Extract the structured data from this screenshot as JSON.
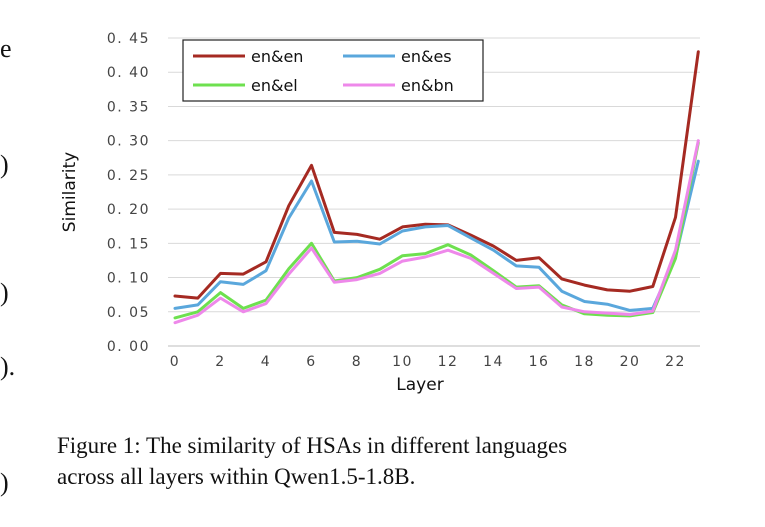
{
  "left_margin_fragments": [
    "e",
    ")",
    ")",
    ").",
    ")"
  ],
  "caption": {
    "line1": "Figure 1: The similarity of HSAs in different languages",
    "line2": "across all layers within Qwen1.5-1.8B."
  },
  "chart_data": {
    "type": "line",
    "xlabel": "Layer",
    "ylabel": "Similarity",
    "x": [
      0,
      1,
      2,
      3,
      4,
      5,
      6,
      7,
      8,
      9,
      10,
      11,
      12,
      13,
      14,
      15,
      16,
      17,
      18,
      19,
      20,
      21,
      22,
      23
    ],
    "xticks": [
      "0",
      "2",
      "4",
      "6",
      "8",
      "10",
      "12",
      "14",
      "16",
      "18",
      "20",
      "22"
    ],
    "yticks": [
      "0. 00",
      "0. 05",
      "0. 10",
      "0. 15",
      "0. 20",
      "0. 25",
      "0. 30",
      "0. 35",
      "0. 40",
      "0. 45"
    ],
    "ylim": [
      0,
      0.45
    ],
    "grid": "horizontal",
    "legend": "top-left",
    "series": [
      {
        "name": "en&en",
        "color": "#a52a22",
        "values": [
          0.073,
          0.07,
          0.106,
          0.105,
          0.123,
          0.205,
          0.264,
          0.166,
          0.163,
          0.156,
          0.174,
          0.178,
          0.177,
          0.162,
          0.146,
          0.125,
          0.129,
          0.098,
          0.089,
          0.082,
          0.08,
          0.087,
          0.188,
          0.43
        ]
      },
      {
        "name": "en&es",
        "color": "#5aa7dc",
        "values": [
          0.055,
          0.06,
          0.094,
          0.09,
          0.11,
          0.187,
          0.241,
          0.152,
          0.153,
          0.149,
          0.168,
          0.174,
          0.176,
          0.158,
          0.14,
          0.117,
          0.115,
          0.08,
          0.065,
          0.061,
          0.052,
          0.055,
          0.13,
          0.27
        ]
      },
      {
        "name": "en&el",
        "color": "#6ee04f",
        "values": [
          0.041,
          0.05,
          0.078,
          0.055,
          0.067,
          0.113,
          0.15,
          0.095,
          0.1,
          0.112,
          0.132,
          0.135,
          0.148,
          0.133,
          0.11,
          0.086,
          0.088,
          0.06,
          0.047,
          0.045,
          0.044,
          0.049,
          0.128,
          0.297
        ]
      },
      {
        "name": "en&bn",
        "color": "#ee88ea",
        "values": [
          0.034,
          0.045,
          0.07,
          0.05,
          0.062,
          0.105,
          0.143,
          0.093,
          0.097,
          0.106,
          0.124,
          0.13,
          0.14,
          0.128,
          0.106,
          0.084,
          0.086,
          0.057,
          0.05,
          0.048,
          0.046,
          0.051,
          0.14,
          0.3
        ]
      }
    ]
  }
}
